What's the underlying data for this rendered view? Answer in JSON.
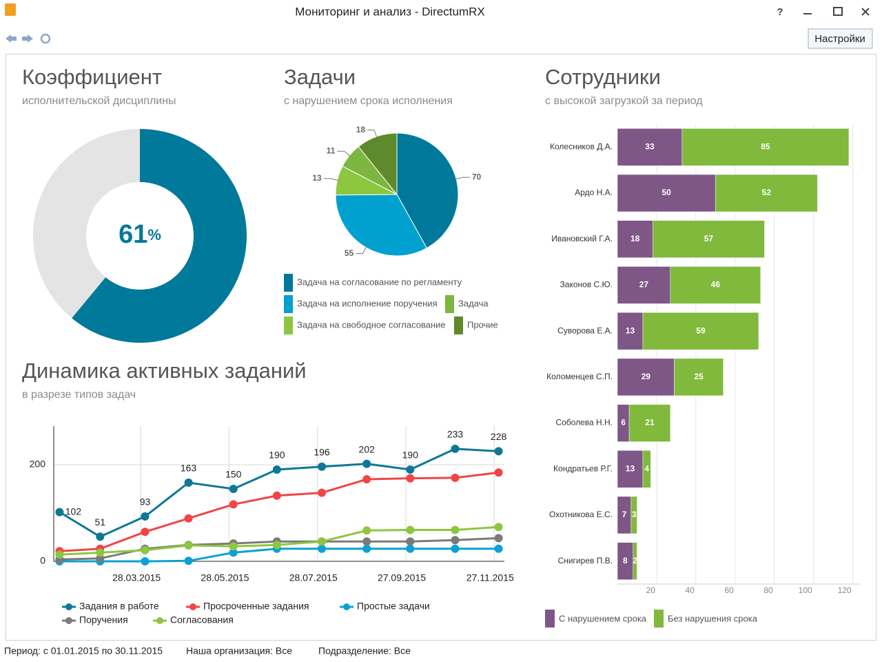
{
  "window": {
    "title": "Мониторинг и анализ - DirectumRX",
    "help": "?",
    "settings_button": "Настройки"
  },
  "status_bar": {
    "period": "Период: с 01.01.2015 по 30.11.2015",
    "organization": "Наша организация: Все",
    "department": "Подразделение: Все"
  },
  "chart_data": [
    {
      "type": "donut",
      "title": "Коэффициент",
      "subtitle": "исполнительской дисциплины",
      "values": [
        61
      ],
      "unit": "%",
      "color": "#00799a",
      "track_color": "#e4e4e4"
    },
    {
      "type": "pie",
      "title": "Задачи",
      "subtitle": "с нарушением срока исполнения",
      "categories": [
        "Задача на согласование по регламенту",
        "Задача на исполнение поручения",
        "Задача на свободное согласование",
        "Задача",
        "Прочие"
      ],
      "values": [
        70,
        55,
        13,
        11,
        18
      ],
      "colors": [
        "#00799a",
        "#00a0cf",
        "#8dc63f",
        "#7cb540",
        "#5f8a2b"
      ]
    },
    {
      "type": "stacked_bar_h",
      "title": "Сотрудники",
      "subtitle": "с высокой загрузкой за период",
      "categories": [
        "Колесников Д.А.",
        "Ардо Н.А.",
        "Ивановский Г.А.",
        "Законов С.Ю.",
        "Суворова Е.А.",
        "Коломенцев С.П.",
        "Соболева Н.Н.",
        "Кондратьев Р.Г.",
        "Охотникова Е.С.",
        "Снигирев П.В."
      ],
      "series": [
        {
          "name": "С нарушением срока",
          "color": "#7e5787",
          "values": [
            33,
            50,
            18,
            27,
            13,
            29,
            6,
            13,
            7,
            8
          ]
        },
        {
          "name": "Без нарушения срока",
          "color": "#80b93c",
          "values": [
            85,
            52,
            57,
            46,
            59,
            25,
            21,
            4,
            3,
            2
          ]
        }
      ],
      "xlim": [
        0,
        124
      ],
      "xticks": [
        20,
        40,
        60,
        80,
        100,
        120
      ],
      "grid": true
    },
    {
      "type": "line",
      "title": "Динамика активных заданий",
      "subtitle": "в разрезе типов задач",
      "x": [
        "2015-01-31",
        "2015-02-28",
        "2015-03-31",
        "2015-04-30",
        "2015-05-31",
        "2015-06-30",
        "2015-07-31",
        "2015-08-31",
        "2015-09-30",
        "2015-10-31",
        "2015-11-30"
      ],
      "series": [
        {
          "name": "Задания в работе",
          "color": "#0e7895",
          "values": [
            102,
            51,
            93,
            163,
            150,
            190,
            196,
            202,
            190,
            233,
            228
          ],
          "data_labels": true
        },
        {
          "name": "Просроченные задания",
          "color": "#f04545",
          "values": [
            21,
            26,
            61,
            89,
            118,
            136,
            142,
            170,
            172,
            173,
            184
          ]
        },
        {
          "name": "Простые задачи",
          "color": "#0aa2d3",
          "values": [
            0,
            0,
            0,
            1,
            18,
            26,
            26,
            26,
            26,
            26,
            26
          ]
        },
        {
          "name": "Поручения",
          "color": "#7a7a7a",
          "values": [
            4,
            6,
            26,
            34,
            37,
            41,
            41,
            41,
            41,
            44,
            48
          ]
        },
        {
          "name": "Согласования",
          "color": "#8dc63f",
          "values": [
            14,
            18,
            23,
            33,
            31,
            34,
            41,
            64,
            65,
            65,
            71
          ]
        }
      ],
      "xlim": [
        "2015-01-27",
        "2015-12-04"
      ],
      "xticks": [
        {
          "value": "2015-03-28",
          "label": "28.03.2015"
        },
        {
          "value": "2015-05-28",
          "label": "28.05.2015"
        },
        {
          "value": "2015-07-28",
          "label": "28.07.2015"
        },
        {
          "value": "2015-09-27",
          "label": "27.09.2015"
        },
        {
          "value": "2015-11-27",
          "label": "27.11.2015"
        }
      ],
      "ylim": [
        0,
        280
      ],
      "yticks": [
        0,
        200
      ],
      "grid": true
    }
  ]
}
